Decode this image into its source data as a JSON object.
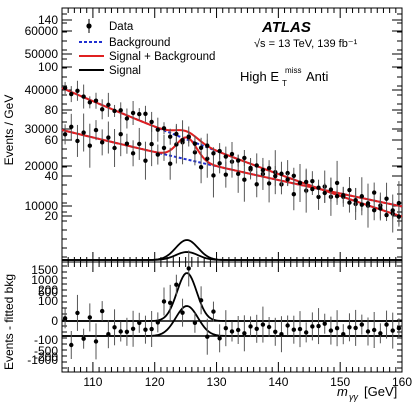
{
  "chart_data": {
    "type": "scatter",
    "experiment": "ATLAS",
    "energy_label": "√s = 13 TeV, 139 fb⁻¹",
    "category": "High E",
    "category_sup": "miss",
    "category_sub": "T",
    "category_suffix": "Anti",
    "xlabel": "m",
    "xlabel_sub": "γγ",
    "xlabel_unit": "[GeV]",
    "ylabel_top": "Events / GeV",
    "ylabel_bottom": "Events - fitted bkg",
    "xlim": [
      105,
      160
    ],
    "x_ticks": [
      110,
      120,
      130,
      140,
      150,
      160
    ],
    "legend": [
      "Data",
      "Background",
      "Signal + Background",
      "Signal"
    ],
    "colors": {
      "data": "#000000",
      "background": "#1f2fd0",
      "signal_bkg": "#e02020",
      "signal": "#000000"
    },
    "top_axis_labels_left_outer": [
      "140",
      "60000",
      "50000",
      "100",
      "40000",
      "80",
      "30000",
      "60",
      "20000",
      "40",
      "10000",
      "20"
    ],
    "top_axis_labels_left_inner": [
      "120",
      "120",
      "120",
      "120",
      "120",
      "120",
      "120",
      "120",
      "120",
      "120",
      "120",
      "120"
    ],
    "bottom_axis_labels": [
      "1500",
      "1000",
      "500",
      "200",
      "100",
      "0",
      "-100",
      "-500",
      "-200",
      "-1000"
    ],
    "series": [
      {
        "name": "Data",
        "x": [
          105.5,
          106.5,
          107.5,
          108.5,
          109.5,
          110.5,
          111.5,
          112.5,
          113.5,
          114.5,
          115.5,
          116.5,
          117.5,
          118.5,
          119.5,
          120.5,
          121.5,
          122.5,
          123.5,
          124.5,
          125.5,
          126.5,
          127.5,
          128.5,
          129.5,
          130.5,
          131.5,
          132.5,
          133.5,
          134.5,
          135.5,
          136.5,
          137.5,
          138.5,
          139.5,
          140.5,
          141.5,
          142.5,
          143.5,
          144.5,
          145.5,
          146.5,
          147.5,
          148.5,
          149.5,
          150.5,
          151.5,
          152.5,
          153.5,
          154.5,
          155.5,
          156.5,
          157.5,
          158.5,
          159.5
        ],
        "y_upper_curve": [
          0.62,
          0.58,
          0.66,
          0.55,
          0.6,
          0.53,
          0.57,
          0.51,
          0.55,
          0.5,
          0.47,
          0.52,
          0.46,
          0.44,
          0.49,
          0.43,
          0.4,
          0.46,
          0.38,
          0.5,
          0.54,
          0.48,
          0.36,
          0.41,
          0.35,
          0.39,
          0.33,
          0.37,
          0.31,
          0.35,
          0.29,
          0.33,
          0.28,
          0.31,
          0.27,
          0.3,
          0.25,
          0.29,
          0.24,
          0.27,
          0.23,
          0.26,
          0.22,
          0.25,
          0.21,
          0.24,
          0.2,
          0.23,
          0.19,
          0.22,
          0.18,
          0.21,
          0.17,
          0.2,
          0.16
        ]
      }
    ]
  }
}
